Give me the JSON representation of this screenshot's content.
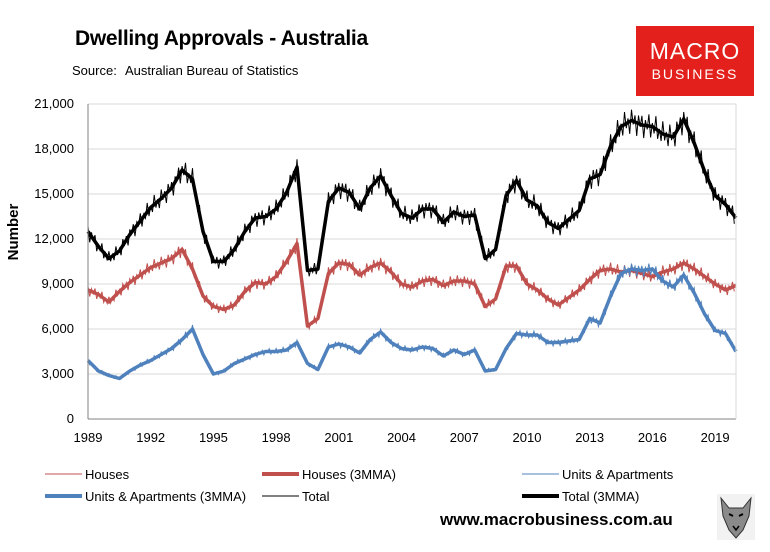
{
  "header": {
    "title": "Dwelling Approvals - Australia",
    "source_label": "Source:",
    "source_value": "Australian Bureau of Statistics"
  },
  "logo": {
    "line1": "MACRO",
    "line2": "BUSINESS"
  },
  "footer": {
    "website": "www.macrobusiness.com.au"
  },
  "colors": {
    "houses": "#c0504d",
    "units": "#4f81bd",
    "total": "#000000",
    "logo_bg": "#e3201b"
  },
  "chart_data": {
    "type": "line",
    "title": "Dwelling Approvals - Australia",
    "xlabel": "",
    "ylabel": "Number",
    "xlim": [
      1989,
      2020
    ],
    "ylim": [
      0,
      21000
    ],
    "yticks": [
      0,
      3000,
      6000,
      9000,
      12000,
      15000,
      18000,
      21000
    ],
    "ytick_labels": [
      "0",
      "3,000",
      "6,000",
      "9,000",
      "12,000",
      "15,000",
      "18,000",
      "21,000"
    ],
    "xticks": [
      1989,
      1992,
      1995,
      1998,
      2001,
      2004,
      2007,
      2010,
      2013,
      2016,
      2019
    ],
    "xtick_labels": [
      "1989",
      "1992",
      "1995",
      "1998",
      "2001",
      "2004",
      "2007",
      "2010",
      "2013",
      "2016",
      "2019"
    ],
    "legend": [
      "Houses",
      "Houses (3MMA)",
      "Units & Apartments",
      "Units & Apartments (3MMA)",
      "Total",
      "Total (3MMA)"
    ],
    "legend_position": "bottom",
    "x": [
      1989.0,
      1989.5,
      1990.0,
      1990.5,
      1991.0,
      1991.5,
      1992.0,
      1992.5,
      1993.0,
      1993.5,
      1994.0,
      1994.5,
      1995.0,
      1995.5,
      1996.0,
      1996.5,
      1997.0,
      1997.5,
      1998.0,
      1998.5,
      1999.0,
      1999.5,
      2000.0,
      2000.5,
      2001.0,
      2001.5,
      2002.0,
      2002.5,
      2003.0,
      2003.5,
      2004.0,
      2004.5,
      2005.0,
      2005.5,
      2006.0,
      2006.5,
      2007.0,
      2007.5,
      2008.0,
      2008.5,
      2009.0,
      2009.5,
      2010.0,
      2010.5,
      2011.0,
      2011.5,
      2012.0,
      2012.5,
      2013.0,
      2013.5,
      2014.0,
      2014.5,
      2015.0,
      2015.5,
      2016.0,
      2016.5,
      2017.0,
      2017.5,
      2018.0,
      2018.5,
      2019.0,
      2019.5,
      2020.0
    ],
    "series": [
      {
        "name": "Houses (3MMA)",
        "values": [
          8600,
          8300,
          7800,
          8500,
          9100,
          9600,
          10100,
          10400,
          10700,
          11300,
          10000,
          8200,
          7500,
          7300,
          7600,
          8500,
          9100,
          9000,
          9500,
          10500,
          11700,
          6200,
          6700,
          9700,
          10400,
          10300,
          9600,
          10100,
          10400,
          9800,
          9000,
          8800,
          9200,
          9300,
          8900,
          9200,
          9200,
          9000,
          7500,
          8000,
          10200,
          10200,
          9000,
          8600,
          8000,
          7600,
          8100,
          8600,
          9300,
          9900,
          10000,
          9800,
          9900,
          9700,
          9500,
          9800,
          10000,
          10400,
          10000,
          9500,
          9000,
          8600,
          8900
        ]
      },
      {
        "name": "Units & Apartments (3MMA)",
        "values": [
          3900,
          3200,
          2900,
          2700,
          3200,
          3600,
          3900,
          4300,
          4700,
          5300,
          6000,
          4300,
          3000,
          3200,
          3700,
          4000,
          4300,
          4500,
          4500,
          4600,
          5100,
          3700,
          3300,
          4800,
          5000,
          4800,
          4400,
          5300,
          5800,
          5100,
          4700,
          4600,
          4800,
          4700,
          4200,
          4600,
          4300,
          4600,
          3200,
          3300,
          4700,
          5700,
          5600,
          5600,
          5100,
          5100,
          5200,
          5300,
          6700,
          6400,
          8200,
          9700,
          10000,
          9900,
          10000,
          9200,
          8800,
          9600,
          8400,
          7000,
          5900,
          5700,
          4500
        ]
      },
      {
        "name": "Total (3MMA)",
        "values": [
          12500,
          11500,
          10700,
          11200,
          12300,
          13200,
          14100,
          14700,
          15400,
          16600,
          16000,
          12500,
          10500,
          10500,
          11300,
          12500,
          13400,
          13500,
          14000,
          15100,
          16800,
          9900,
          10000,
          14500,
          15400,
          15100,
          14000,
          15400,
          16200,
          14900,
          13700,
          13400,
          14000,
          14000,
          13100,
          13800,
          13500,
          13600,
          10700,
          11300,
          14900,
          15900,
          14600,
          14200,
          13100,
          12700,
          13300,
          13900,
          16000,
          16300,
          18200,
          19500,
          19900,
          19600,
          19500,
          19000,
          18800,
          20000,
          18400,
          16500,
          14900,
          14300,
          13400
        ]
      }
    ]
  }
}
